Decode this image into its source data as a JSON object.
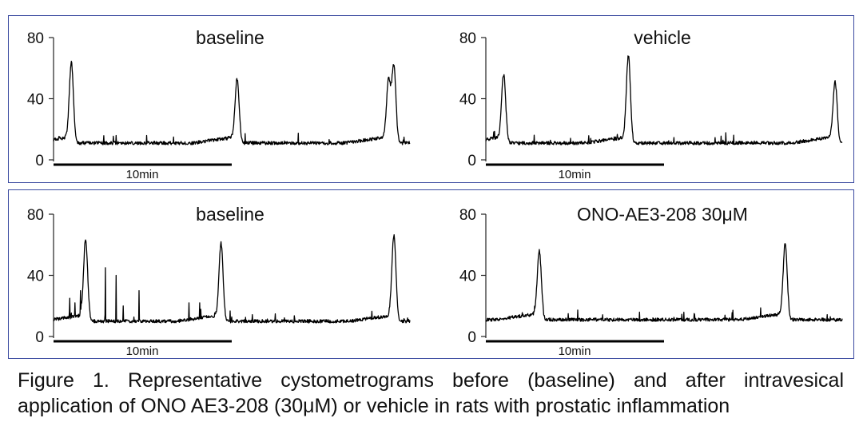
{
  "chart_data": [
    {
      "type": "line",
      "title": "baseline",
      "row": "top",
      "yticks": [
        0,
        40,
        80
      ],
      "ylim": [
        0,
        80
      ],
      "xlim_min": [
        0,
        20
      ],
      "scale_bar_label": "10min",
      "peaks_min": [
        1.0,
        10.3,
        18.8,
        19.1
      ],
      "peak_values": [
        64,
        53,
        52,
        61
      ],
      "baseline_value": 11
    },
    {
      "type": "line",
      "title": "vehicle",
      "row": "top",
      "yticks": [
        0,
        40,
        80
      ],
      "ylim": [
        0,
        80
      ],
      "xlim_min": [
        0,
        20
      ],
      "scale_bar_label": "10min",
      "peaks_min": [
        1.0,
        8.0,
        19.6
      ],
      "peak_values": [
        56,
        68,
        51
      ],
      "baseline_value": 11
    },
    {
      "type": "line",
      "title": "baseline",
      "row": "bottom",
      "yticks": [
        0,
        40,
        80
      ],
      "ylim": [
        0,
        80
      ],
      "xlim_min": [
        0,
        20
      ],
      "scale_bar_label": "10min",
      "peaks_min": [
        1.8,
        9.4,
        19.1
      ],
      "peak_values": [
        64,
        61,
        66
      ],
      "baseline_value": 10
    },
    {
      "type": "line",
      "title": "ONO-AE3-208 30μM",
      "row": "bottom",
      "yticks": [
        0,
        40,
        80
      ],
      "ylim": [
        0,
        80
      ],
      "xlim_min": [
        0,
        20
      ],
      "scale_bar_label": "10min",
      "peaks_min": [
        3.0,
        16.8
      ],
      "peak_values": [
        56,
        61
      ],
      "baseline_value": 11
    }
  ],
  "caption": {
    "line1": "Figure 1. Representative cystometrograms before (baseline) and after intravesical",
    "line2": "application of ONO AE3-208 (30μM) or vehicle in rats with prostatic inflammation"
  }
}
